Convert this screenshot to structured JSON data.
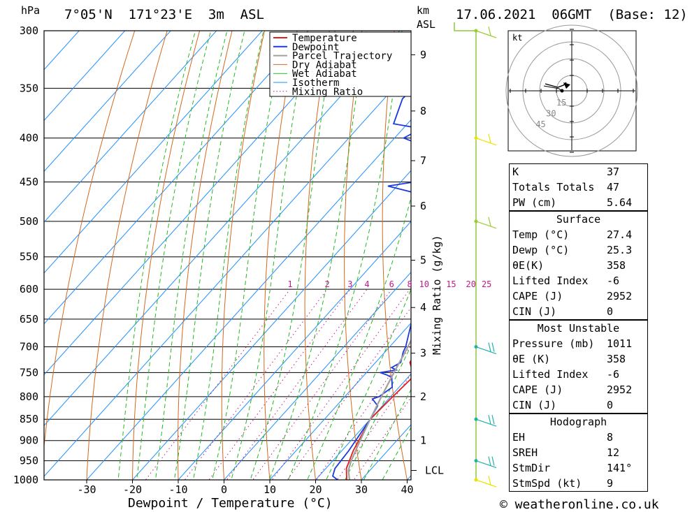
{
  "header": {
    "location": "7°05'N  171°23'E  3m  ASL",
    "datetime": "17.06.2021  06GMT  (Base: 12)",
    "hpa_unit": "hPa",
    "km_unit": "km",
    "asl_unit": "ASL"
  },
  "footer": {
    "credit": "© weatheronline.co.uk"
  },
  "colors": {
    "temperature": "#e02020",
    "dewpoint": "#1a3adf",
    "parcel": "#a0a0a0",
    "dry_adiabat": "#d2691e",
    "wet_adiabat": "#22b822",
    "isotherm": "#1e90ff",
    "mixing_ratio": "#c2188a",
    "wind": "#8fc83c",
    "hodograph": "#000000"
  },
  "legend": [
    "Temperature",
    "Dewpoint",
    "Parcel Trajectory",
    "Dry Adiabat",
    "Wet Adiabat",
    "Isotherm",
    "Mixing Ratio"
  ],
  "chart_data": {
    "type": "line",
    "title": "",
    "xlabel": "Dewpoint / Temperature (°C)",
    "ylabel": "hPa",
    "y2label": "Mixing Ratio (g/kg)",
    "xlim": [
      -40,
      40
    ],
    "ylim": [
      1000,
      300
    ],
    "x_ticks": [
      -30,
      -20,
      -10,
      0,
      10,
      20,
      30,
      40
    ],
    "pressure_levels": [
      300,
      350,
      400,
      450,
      500,
      550,
      600,
      650,
      700,
      750,
      800,
      850,
      900,
      950,
      1000
    ],
    "km_ticks": [
      {
        "km": 1,
        "p": 900
      },
      {
        "km": 2,
        "p": 800
      },
      {
        "km": 3,
        "p": 712
      },
      {
        "km": 4,
        "p": 630
      },
      {
        "km": 5,
        "p": 555
      },
      {
        "km": 6,
        "p": 480
      },
      {
        "km": 7,
        "p": 425
      },
      {
        "km": 8,
        "p": 372
      },
      {
        "km": 9,
        "p": 320
      }
    ],
    "lcl_label": "LCL",
    "lcl_pressure": 975,
    "mixing_ratio_labels": [
      "1",
      "2",
      "3",
      "4",
      "6",
      "8",
      "10",
      "15",
      "20",
      "25"
    ],
    "series": [
      {
        "name": "Temperature",
        "points": [
          [
            1000,
            26.8
          ],
          [
            970,
            24.5
          ],
          [
            925,
            22.5
          ],
          [
            850,
            20.0
          ],
          [
            800,
            20.5
          ],
          [
            760,
            21.0
          ],
          [
            745,
            19.5
          ],
          [
            730,
            17.5
          ],
          [
            700,
            16.5
          ],
          [
            650,
            16.5
          ],
          [
            600,
            12.0
          ],
          [
            550,
            7.0
          ],
          [
            500,
            2.0
          ],
          [
            460,
            -3.5
          ],
          [
            450,
            -5.5
          ],
          [
            400,
            -11.0
          ],
          [
            390,
            -12.0
          ],
          [
            360,
            -15.0
          ],
          [
            300,
            -29.0
          ]
        ]
      },
      {
        "name": "Dewpoint",
        "points": [
          [
            1000,
            24.8
          ],
          [
            990,
            23.0
          ],
          [
            970,
            22.0
          ],
          [
            925,
            21.5
          ],
          [
            850,
            20.0
          ],
          [
            820,
            19.0
          ],
          [
            805,
            16.5
          ],
          [
            800,
            17.5
          ],
          [
            780,
            18.5
          ],
          [
            760,
            16.5
          ],
          [
            755,
            15.0
          ],
          [
            750,
            13.0
          ],
          [
            745,
            16.0
          ],
          [
            740,
            14.5
          ],
          [
            730,
            15.5
          ],
          [
            710,
            14.0
          ],
          [
            700,
            13.5
          ],
          [
            650,
            9.5
          ],
          [
            620,
            10.5
          ],
          [
            600,
            9.0
          ],
          [
            550,
            4.0
          ],
          [
            530,
            0.5
          ],
          [
            500,
            -2.0
          ],
          [
            495,
            -0.5
          ],
          [
            475,
            -2.5
          ],
          [
            470,
            -9.0
          ],
          [
            455,
            -22.0
          ],
          [
            450,
            -17.0
          ],
          [
            440,
            -16.0
          ],
          [
            420,
            -22.0
          ],
          [
            410,
            -21.0
          ],
          [
            400,
            -28.0
          ],
          [
            390,
            -26.0
          ],
          [
            385,
            -33.0
          ],
          [
            360,
            -36.0
          ],
          [
            300,
            -34.0
          ]
        ]
      },
      {
        "name": "Parcel Trajectory",
        "points": [
          [
            1000,
            27.4
          ],
          [
            975,
            25.3
          ],
          [
            950,
            24.0
          ],
          [
            900,
            22.0
          ],
          [
            850,
            20.0
          ],
          [
            800,
            18.0
          ],
          [
            750,
            16.0
          ],
          [
            700,
            14.0
          ],
          [
            650,
            11.5
          ],
          [
            600,
            8.5
          ],
          [
            550,
            4.5
          ],
          [
            500,
            0.5
          ],
          [
            450,
            -6.0
          ],
          [
            400,
            -13.0
          ],
          [
            350,
            -19.0
          ]
        ]
      }
    ]
  },
  "hodograph": {
    "unit": "kt",
    "ring_labels": [
      "15",
      "30",
      "45"
    ]
  },
  "winds": [
    {
      "p": 1000,
      "barbs": 1
    },
    {
      "p": 950,
      "barbs": 2
    },
    {
      "p": 850,
      "barbs": 2
    },
    {
      "p": 700,
      "barbs": 2
    },
    {
      "p": 500,
      "barbs": 1
    },
    {
      "p": 400,
      "barbs": 1
    },
    {
      "p": 300,
      "barbs": 1
    }
  ],
  "indices": {
    "rows": [
      {
        "label": "K",
        "value": "37"
      },
      {
        "label": "Totals Totals",
        "value": "47"
      },
      {
        "label": "PW (cm)",
        "value": "5.64"
      }
    ]
  },
  "surface": {
    "title": "Surface",
    "rows": [
      {
        "label": "Temp (°C)",
        "value": "27.4"
      },
      {
        "label": "Dewp (°C)",
        "value": "25.3"
      },
      {
        "label": "θE(K)",
        "value": "358"
      },
      {
        "label": "Lifted Index",
        "value": "-6"
      },
      {
        "label": "CAPE (J)",
        "value": "2952"
      },
      {
        "label": "CIN (J)",
        "value": "0"
      }
    ]
  },
  "most_unstable": {
    "title": "Most Unstable",
    "rows": [
      {
        "label": "Pressure (mb)",
        "value": "1011"
      },
      {
        "label": "θE (K)",
        "value": "358"
      },
      {
        "label": "Lifted Index",
        "value": "-6"
      },
      {
        "label": "CAPE (J)",
        "value": "2952"
      },
      {
        "label": "CIN (J)",
        "value": "0"
      }
    ]
  },
  "hodo_table": {
    "title": "Hodograph",
    "rows": [
      {
        "label": "EH",
        "value": "8"
      },
      {
        "label": "SREH",
        "value": "12"
      },
      {
        "label": "StmDir",
        "value": "141°"
      },
      {
        "label": "StmSpd (kt)",
        "value": "9"
      }
    ]
  }
}
